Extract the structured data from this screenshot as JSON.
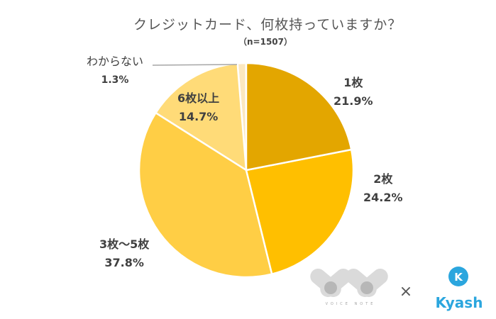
{
  "chart_data": {
    "type": "pie",
    "title": "クレジットカード、何枚持っていますか？",
    "subtitle": "（n=1507）",
    "start_angle": "12 o'clock",
    "direction": "clockwise",
    "slices": [
      {
        "label": "1枚",
        "value": 21.9,
        "display": "21.9%",
        "color": "#E3A600"
      },
      {
        "label": "2枚",
        "value": 24.2,
        "display": "24.2%",
        "color": "#FFBF00"
      },
      {
        "label": "3枚～5枚",
        "value": 37.8,
        "display": "37.8%",
        "color": "#FFCE45"
      },
      {
        "label": "6枚以上",
        "value": 14.7,
        "display": "14.7%",
        "color": "#FFDB78"
      },
      {
        "label": "わからない",
        "value": 1.3,
        "display": "1.3%",
        "color": "#FCE8C0"
      }
    ]
  },
  "logos": {
    "voice_note": "VOICE NOTE",
    "times": "×",
    "kyash": "Kyash",
    "kyash_color": "#2BA6DE"
  }
}
